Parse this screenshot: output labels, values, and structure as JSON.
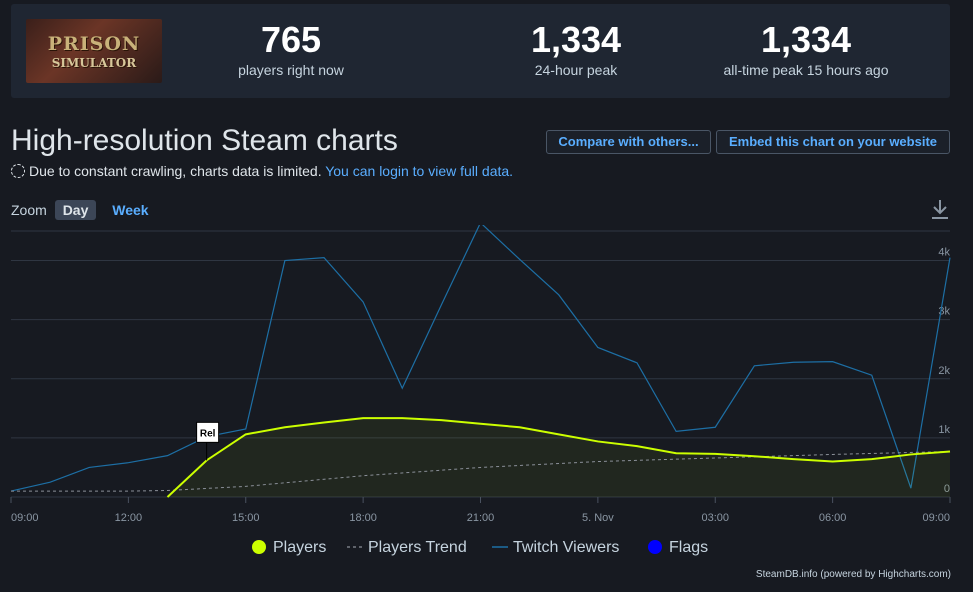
{
  "game": {
    "logo_title": "PRISON",
    "logo_subtitle": "SIMULATOR"
  },
  "stats": [
    {
      "value": "765",
      "label": "players right now"
    },
    {
      "value": "1,334",
      "label": "24-hour peak"
    },
    {
      "value": "1,334",
      "label": "all-time peak 15 hours ago"
    }
  ],
  "page_title": "High-resolution Steam charts",
  "buttons": {
    "compare": "Compare with others...",
    "embed": "Embed this chart on your website"
  },
  "notice": {
    "text": "Due to constant crawling, charts data is limited.",
    "link": "You can login to view full data."
  },
  "zoom": {
    "label": "Zoom",
    "day": "Day",
    "week": "Week"
  },
  "credit": "SteamDB.info (powered by Highcharts.com)",
  "chart_data": {
    "type": "line",
    "x_ticks": [
      "09:00",
      "12:00",
      "15:00",
      "18:00",
      "21:00",
      "5. Nov",
      "03:00",
      "06:00",
      "09:00"
    ],
    "y_ticks": [
      "0",
      "1k",
      "2k",
      "3k",
      "4k"
    ],
    "ylim": [
      0,
      4500
    ],
    "x_range_hours": [
      0,
      24
    ],
    "grid": true,
    "legend_position": "bottom",
    "legend": [
      "Players",
      "Players Trend",
      "Twitch Viewers",
      "Flags"
    ],
    "flag_label": "Rel",
    "flag_x": 5,
    "colors": {
      "players": "#ccff00",
      "trend": "#8a8f98",
      "twitch": "#1d6fa5",
      "flags": "#0000ff"
    },
    "series": [
      {
        "name": "Players",
        "type": "area",
        "x": [
          4,
          5,
          6,
          7,
          8,
          9,
          10,
          11,
          12,
          13,
          14,
          15,
          16,
          17,
          18,
          19,
          20,
          21,
          22,
          23,
          24
        ],
        "values": [
          0,
          620,
          1060,
          1180,
          1260,
          1334,
          1334,
          1300,
          1240,
          1180,
          1060,
          940,
          860,
          740,
          730,
          690,
          640,
          600,
          640,
          720,
          770
        ]
      },
      {
        "name": "Players Trend",
        "type": "line",
        "x": [
          0,
          3,
          4,
          6,
          9,
          12,
          15,
          18,
          21,
          24
        ],
        "values": [
          100,
          100,
          110,
          180,
          360,
          500,
          600,
          660,
          720,
          770
        ]
      },
      {
        "name": "Twitch Viewers",
        "type": "line",
        "x": [
          0,
          1,
          2,
          3,
          4,
          5,
          6,
          7,
          8,
          9,
          10,
          11,
          12,
          13,
          14,
          15,
          16,
          17,
          18,
          19,
          20,
          21,
          22,
          23,
          24
        ],
        "values": [
          100,
          250,
          500,
          580,
          700,
          1020,
          1150,
          4000,
          4050,
          3300,
          1840,
          3250,
          4640,
          4020,
          3420,
          2530,
          2270,
          1110,
          1180,
          2220,
          2280,
          2290,
          2060,
          150,
          4050
        ]
      }
    ]
  }
}
